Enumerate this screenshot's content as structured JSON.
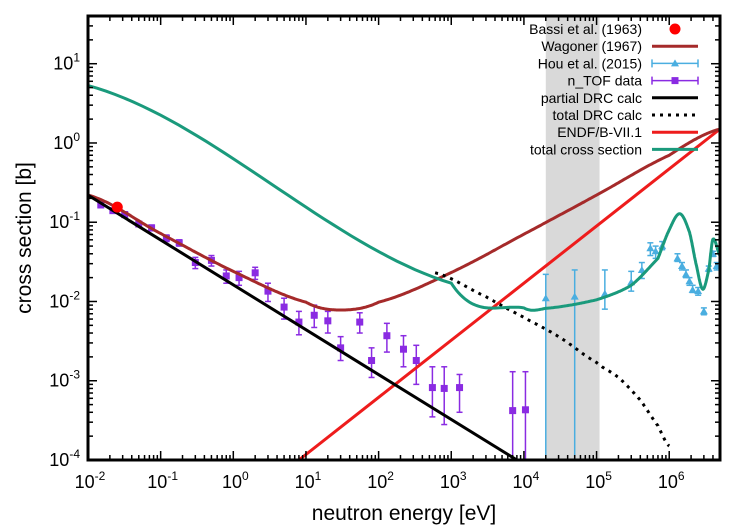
{
  "chart_data": {
    "type": "line",
    "xlabel": "neutron energy [eV]",
    "ylabel": "cross section [b]",
    "xscale": "log",
    "yscale": "log",
    "xlim": [
      0.01,
      5000000
    ],
    "ylim": [
      0.0001,
      40
    ],
    "grid": false,
    "legend_position": "top-right",
    "x_ticks": [
      {
        "base": "10",
        "exp": "-2",
        "value": 0.01
      },
      {
        "base": "10",
        "exp": "-1",
        "value": 0.1
      },
      {
        "base": "10",
        "exp": "0",
        "value": 1
      },
      {
        "base": "10",
        "exp": "1",
        "value": 10
      },
      {
        "base": "10",
        "exp": "2",
        "value": 100
      },
      {
        "base": "10",
        "exp": "3",
        "value": 1000
      },
      {
        "base": "10",
        "exp": "4",
        "value": 10000
      },
      {
        "base": "10",
        "exp": "5",
        "value": 100000
      },
      {
        "base": "10",
        "exp": "6",
        "value": 1000000
      }
    ],
    "y_ticks": [
      {
        "base": "10",
        "exp": "-4",
        "value": 0.0001
      },
      {
        "base": "10",
        "exp": "-3",
        "value": 0.001
      },
      {
        "base": "10",
        "exp": "-2",
        "value": 0.01
      },
      {
        "base": "10",
        "exp": "-1",
        "value": 0.1
      },
      {
        "base": "10",
        "exp": "0",
        "value": 1
      },
      {
        "base": "10",
        "exp": "1",
        "value": 10
      }
    ],
    "shaded_region": {
      "x": [
        20000,
        110000
      ],
      "color": "#d9d9d9"
    },
    "series": [
      {
        "name": "Bassi et al. (1963)",
        "kind": "point",
        "color": "#ff0000",
        "x": [
          0.0253
        ],
        "y": [
          0.155
        ]
      },
      {
        "name": "Wagoner (1967)",
        "kind": "line",
        "color": "#a52a2a",
        "x": [
          0.01,
          0.1,
          1,
          10,
          30,
          100,
          1000,
          10000,
          100000,
          1000000,
          5000000
        ],
        "y": [
          0.22,
          0.072,
          0.024,
          0.0098,
          0.0078,
          0.0098,
          0.0232,
          0.0706,
          0.22,
          0.7,
          1.5
        ]
      },
      {
        "name": "Hou et al. (2015)",
        "kind": "errorbar",
        "color": "#4aaee0",
        "points": [
          {
            "x": 20000,
            "y": 0.011,
            "ylo": 0.0001,
            "yhi": 0.022
          },
          {
            "x": 50000,
            "y": 0.0115,
            "ylo": 0.0001,
            "yhi": 0.025
          },
          {
            "x": 130000,
            "y": 0.0125,
            "ylo": 0.008,
            "yhi": 0.025
          },
          {
            "x": 300000,
            "y": 0.0175,
            "ylo": 0.0135,
            "yhi": 0.024
          },
          {
            "x": 420000,
            "y": 0.025,
            "ylo": 0.0195,
            "yhi": 0.031
          },
          {
            "x": 550000,
            "y": 0.047,
            "ylo": 0.038,
            "yhi": 0.055
          },
          {
            "x": 650000,
            "y": 0.043,
            "ylo": 0.035,
            "yhi": 0.05
          },
          {
            "x": 800000,
            "y": 0.05,
            "ylo": 0.045,
            "yhi": 0.057
          },
          {
            "x": 1300000,
            "y": 0.035,
            "ylo": 0.032,
            "yhi": 0.04
          },
          {
            "x": 1500000,
            "y": 0.028,
            "ylo": 0.025,
            "yhi": 0.031
          },
          {
            "x": 1700000,
            "y": 0.022,
            "ylo": 0.02,
            "yhi": 0.025
          },
          {
            "x": 1900000,
            "y": 0.018,
            "ylo": 0.016,
            "yhi": 0.02
          },
          {
            "x": 2100000,
            "y": 0.014,
            "ylo": 0.013,
            "yhi": 0.016
          },
          {
            "x": 2500000,
            "y": 0.0135,
            "ylo": 0.012,
            "yhi": 0.015
          },
          {
            "x": 3000000,
            "y": 0.0075,
            "ylo": 0.0068,
            "yhi": 0.0083
          },
          {
            "x": 3500000,
            "y": 0.026,
            "ylo": 0.024,
            "yhi": 0.028
          },
          {
            "x": 4000000,
            "y": 0.04,
            "ylo": 0.037,
            "yhi": 0.043
          },
          {
            "x": 4500000,
            "y": 0.028,
            "ylo": 0.025,
            "yhi": 0.031
          }
        ]
      },
      {
        "name": "n_TOF data",
        "kind": "errorbar",
        "color": "#8a2be2",
        "points": [
          {
            "x": 0.015,
            "y": 0.165,
            "ylo": 0.155,
            "yhi": 0.175
          },
          {
            "x": 0.022,
            "y": 0.14,
            "ylo": 0.13,
            "yhi": 0.15
          },
          {
            "x": 0.032,
            "y": 0.125,
            "ylo": 0.115,
            "yhi": 0.135
          },
          {
            "x": 0.05,
            "y": 0.095,
            "ylo": 0.088,
            "yhi": 0.102
          },
          {
            "x": 0.075,
            "y": 0.085,
            "ylo": 0.078,
            "yhi": 0.092
          },
          {
            "x": 0.12,
            "y": 0.063,
            "ylo": 0.057,
            "yhi": 0.069
          },
          {
            "x": 0.18,
            "y": 0.055,
            "ylo": 0.05,
            "yhi": 0.06
          },
          {
            "x": 0.3,
            "y": 0.031,
            "ylo": 0.026,
            "yhi": 0.036
          },
          {
            "x": 0.5,
            "y": 0.033,
            "ylo": 0.028,
            "yhi": 0.038
          },
          {
            "x": 0.8,
            "y": 0.021,
            "ylo": 0.017,
            "yhi": 0.025
          },
          {
            "x": 1.2,
            "y": 0.02,
            "ylo": 0.016,
            "yhi": 0.024
          },
          {
            "x": 2.0,
            "y": 0.023,
            "ylo": 0.019,
            "yhi": 0.027
          },
          {
            "x": 3.0,
            "y": 0.0135,
            "ylo": 0.01,
            "yhi": 0.017
          },
          {
            "x": 5.0,
            "y": 0.0085,
            "ylo": 0.006,
            "yhi": 0.011
          },
          {
            "x": 8.0,
            "y": 0.0055,
            "ylo": 0.0038,
            "yhi": 0.0075
          },
          {
            "x": 13.0,
            "y": 0.0067,
            "ylo": 0.0047,
            "yhi": 0.009
          },
          {
            "x": 20.0,
            "y": 0.0057,
            "ylo": 0.004,
            "yhi": 0.0075
          },
          {
            "x": 30.0,
            "y": 0.0026,
            "ylo": 0.0018,
            "yhi": 0.0036
          },
          {
            "x": 55.0,
            "y": 0.0055,
            "ylo": 0.004,
            "yhi": 0.0072
          },
          {
            "x": 80.0,
            "y": 0.0018,
            "ylo": 0.0011,
            "yhi": 0.0026
          },
          {
            "x": 130.0,
            "y": 0.0037,
            "ylo": 0.0023,
            "yhi": 0.0053
          },
          {
            "x": 220.0,
            "y": 0.0025,
            "ylo": 0.0015,
            "yhi": 0.0037
          },
          {
            "x": 330.0,
            "y": 0.0018,
            "ylo": 0.0009,
            "yhi": 0.0028
          },
          {
            "x": 550.0,
            "y": 0.00082,
            "ylo": 0.00035,
            "yhi": 0.0015
          },
          {
            "x": 800.0,
            "y": 0.0008,
            "ylo": 0.00028,
            "yhi": 0.0015
          },
          {
            "x": 1300.0,
            "y": 0.00082,
            "ylo": 0.0004,
            "yhi": 0.0012
          },
          {
            "x": 7000.0,
            "y": 0.00042,
            "ylo": 0.0001,
            "yhi": 0.0013
          },
          {
            "x": 10500.0,
            "y": 0.00043,
            "ylo": 0.0001,
            "yhi": 0.0013
          }
        ]
      },
      {
        "name": "partial DRC calc",
        "kind": "line",
        "color": "#000000",
        "x": [
          0.01,
          8000
        ],
        "y": [
          0.22,
          0.0001
        ]
      },
      {
        "name": "total DRC calc",
        "kind": "dotted",
        "color": "#000000",
        "x": [
          600,
          3000,
          10000,
          30000,
          100000,
          200000,
          400000,
          700000,
          1000000
        ],
        "y": [
          0.023,
          0.0115,
          0.0063,
          0.0036,
          0.0017,
          0.0011,
          0.00057,
          0.00027,
          0.00015
        ]
      },
      {
        "name": "ENDF/B-VII.1",
        "kind": "line",
        "color": "#ee1c1c",
        "x": [
          8,
          5000000
        ],
        "y": [
          0.0001,
          1.5
        ]
      },
      {
        "name": "total cross section",
        "kind": "line",
        "color": "#1a9a7c",
        "x": [
          0.01,
          1000,
          10000,
          20000,
          100000,
          300000,
          700000,
          1000000,
          1400000,
          1900000,
          2400000,
          2900000,
          3500000,
          4000000,
          5000000
        ],
        "y": [
          5.3,
          0.017,
          0.0083,
          0.0082,
          0.0105,
          0.016,
          0.035,
          0.08,
          0.128,
          0.075,
          0.027,
          0.0143,
          0.025,
          0.061,
          0.038
        ]
      }
    ]
  }
}
